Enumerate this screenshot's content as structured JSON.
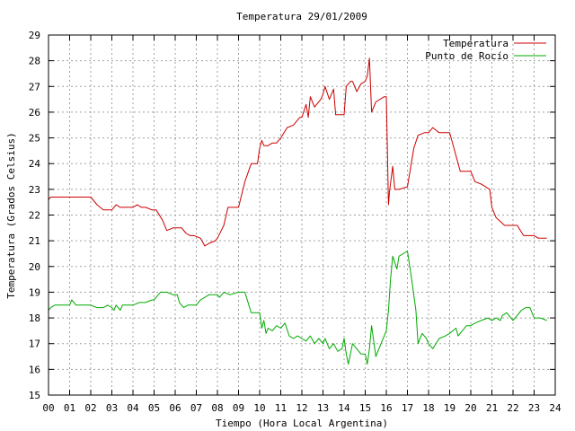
{
  "chart_data": {
    "type": "line",
    "title": "Temperatura 29/01/2009",
    "xlabel": "Tiempo (Hora Local Argentina)",
    "ylabel": "Temperatura (Grados Celsius)",
    "xlim": [
      0,
      24
    ],
    "ylim": [
      15,
      29
    ],
    "x_ticks": [
      "00",
      "01",
      "02",
      "03",
      "04",
      "05",
      "06",
      "07",
      "08",
      "09",
      "10",
      "11",
      "12",
      "13",
      "14",
      "15",
      "16",
      "17",
      "18",
      "19",
      "20",
      "21",
      "22",
      "23",
      "24"
    ],
    "y_ticks": [
      "15",
      "16",
      "17",
      "18",
      "19",
      "20",
      "21",
      "22",
      "23",
      "24",
      "25",
      "26",
      "27",
      "28",
      "29"
    ],
    "grid": true,
    "legend_position": "top-right",
    "series": [
      {
        "name": "Temperatura",
        "color": "#cc0000",
        "x": [
          0.0,
          0.1,
          2.0,
          2.3,
          2.6,
          3.0,
          3.1,
          3.2,
          3.4,
          3.7,
          4.0,
          4.2,
          4.4,
          4.6,
          4.9,
          5.1,
          5.4,
          5.6,
          5.9,
          6.0,
          6.3,
          6.5,
          6.7,
          6.9,
          7.2,
          7.4,
          7.6,
          7.9,
          8.0,
          8.3,
          8.5,
          8.8,
          9.0,
          9.3,
          9.6,
          9.9,
          10.0,
          10.1,
          10.2,
          10.4,
          10.6,
          10.8,
          11.0,
          11.3,
          11.6,
          11.9,
          12.0,
          12.2,
          12.3,
          12.4,
          12.6,
          12.9,
          13.0,
          13.1,
          13.3,
          13.5,
          13.6,
          13.9,
          14.0,
          14.1,
          14.3,
          14.4,
          14.6,
          14.8,
          15.0,
          15.1,
          15.2,
          15.3,
          15.5,
          15.9,
          16.0,
          16.1,
          16.15,
          16.3,
          16.4,
          16.6,
          17.0,
          17.3,
          17.5,
          17.8,
          18.0,
          18.2,
          18.5,
          18.8,
          19.0,
          19.5,
          19.7,
          20.0,
          20.2,
          20.5,
          20.9,
          21.0,
          21.2,
          21.6,
          22.0,
          22.2,
          22.5,
          22.9,
          23.0,
          23.2,
          23.6
        ],
        "values": [
          22.6,
          22.7,
          22.7,
          22.4,
          22.2,
          22.2,
          22.3,
          22.4,
          22.3,
          22.3,
          22.3,
          22.4,
          22.3,
          22.3,
          22.2,
          22.2,
          21.8,
          21.4,
          21.5,
          21.5,
          21.5,
          21.3,
          21.2,
          21.2,
          21.1,
          20.8,
          20.9,
          21.0,
          21.1,
          21.6,
          22.3,
          22.3,
          22.3,
          23.3,
          24.0,
          24.0,
          24.6,
          24.9,
          24.7,
          24.7,
          24.8,
          24.8,
          25.0,
          25.4,
          25.5,
          25.8,
          25.8,
          26.3,
          25.8,
          26.6,
          26.2,
          26.5,
          26.7,
          27.0,
          26.5,
          26.9,
          25.9,
          25.9,
          25.9,
          27.0,
          27.2,
          27.2,
          26.8,
          27.1,
          27.2,
          27.4,
          28.1,
          26.0,
          26.4,
          26.6,
          26.6,
          22.4,
          22.9,
          23.9,
          23.0,
          23.0,
          23.1,
          24.6,
          25.1,
          25.2,
          25.2,
          25.4,
          25.2,
          25.2,
          25.2,
          23.7,
          23.7,
          23.7,
          23.3,
          23.2,
          23.0,
          22.3,
          21.9,
          21.6,
          21.6,
          21.6,
          21.2,
          21.2,
          21.2,
          21.1,
          21.1
        ]
      },
      {
        "name": "Punto de Rocío",
        "color": "#00aa00",
        "x": [
          0.0,
          0.1,
          0.3,
          0.6,
          1.0,
          1.1,
          1.3,
          1.6,
          2.0,
          2.3,
          2.6,
          2.8,
          3.0,
          3.1,
          3.2,
          3.4,
          3.5,
          3.7,
          4.0,
          4.3,
          4.6,
          4.9,
          5.0,
          5.2,
          5.3,
          5.6,
          5.9,
          6.1,
          6.2,
          6.4,
          6.6,
          6.9,
          7.0,
          7.2,
          7.4,
          7.6,
          7.8,
          8.0,
          8.1,
          8.3,
          8.6,
          9.0,
          9.3,
          9.6,
          9.9,
          10.0,
          10.1,
          10.2,
          10.3,
          10.4,
          10.6,
          10.8,
          11.0,
          11.2,
          11.4,
          11.6,
          11.8,
          12.0,
          12.2,
          12.4,
          12.6,
          12.8,
          13.0,
          13.1,
          13.3,
          13.5,
          13.7,
          13.9,
          14.0,
          14.1,
          14.2,
          14.4,
          14.6,
          14.8,
          15.0,
          15.1,
          15.2,
          15.3,
          15.5,
          15.8,
          16.0,
          16.1,
          16.2,
          16.3,
          16.5,
          16.6,
          16.8,
          17.0,
          17.2,
          17.4,
          17.5,
          17.7,
          17.9,
          18.0,
          18.2,
          18.5,
          18.8,
          19.0,
          19.3,
          19.4,
          19.6,
          19.8,
          20.0,
          20.2,
          20.5,
          20.8,
          21.0,
          21.2,
          21.4,
          21.5,
          21.7,
          22.0,
          22.4,
          22.6,
          22.8,
          23.0,
          23.3,
          23.6
        ],
        "values": [
          18.3,
          18.4,
          18.5,
          18.5,
          18.5,
          18.7,
          18.5,
          18.5,
          18.5,
          18.4,
          18.4,
          18.5,
          18.4,
          18.3,
          18.5,
          18.3,
          18.5,
          18.5,
          18.5,
          18.6,
          18.6,
          18.7,
          18.7,
          18.9,
          19.0,
          19.0,
          18.9,
          18.9,
          18.6,
          18.4,
          18.5,
          18.5,
          18.5,
          18.7,
          18.8,
          18.9,
          18.9,
          18.9,
          18.8,
          19.0,
          18.9,
          19.0,
          19.0,
          18.2,
          18.2,
          18.2,
          17.6,
          17.9,
          17.4,
          17.6,
          17.5,
          17.7,
          17.6,
          17.8,
          17.3,
          17.2,
          17.3,
          17.2,
          17.1,
          17.3,
          17.0,
          17.2,
          17.0,
          17.2,
          16.8,
          17.0,
          16.7,
          16.8,
          17.2,
          16.6,
          16.2,
          17.0,
          16.8,
          16.6,
          16.6,
          16.2,
          16.8,
          17.7,
          16.5,
          17.1,
          17.5,
          18.3,
          19.5,
          20.4,
          19.9,
          20.4,
          20.5,
          20.6,
          19.5,
          18.3,
          17.0,
          17.4,
          17.2,
          17.0,
          16.8,
          17.2,
          17.3,
          17.4,
          17.6,
          17.3,
          17.5,
          17.7,
          17.7,
          17.8,
          17.9,
          18.0,
          17.9,
          18.0,
          17.9,
          18.1,
          18.2,
          17.9,
          18.3,
          18.4,
          18.4,
          18.0,
          18.0,
          17.9
        ]
      }
    ]
  }
}
